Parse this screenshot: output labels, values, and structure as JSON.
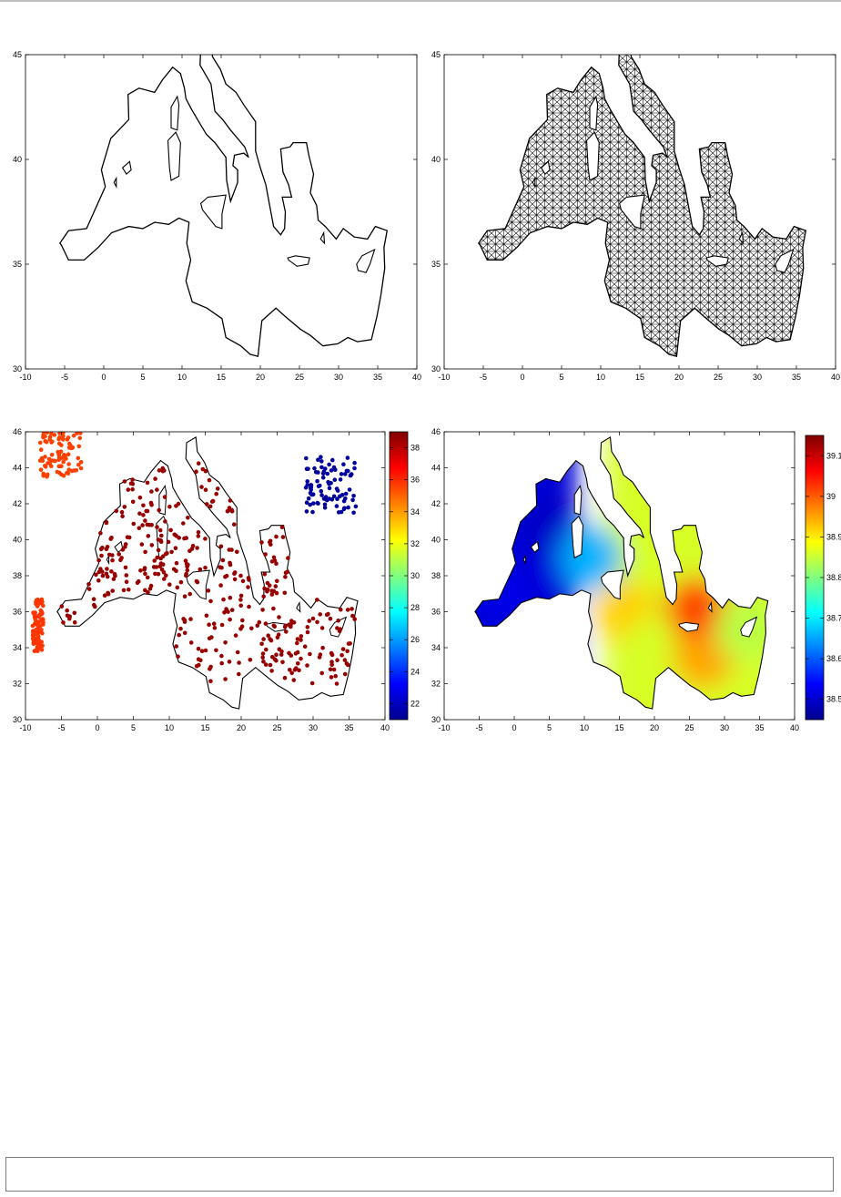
{
  "chart_data": [
    {
      "type": "line",
      "panel": "coastline",
      "xlim": [
        -10,
        40
      ],
      "ylim": [
        30,
        45
      ],
      "xticks": [
        -10,
        -5,
        0,
        5,
        10,
        15,
        20,
        25,
        30,
        35,
        40
      ],
      "yticks": [
        30,
        35,
        40,
        45
      ],
      "grid": false
    },
    {
      "type": "line",
      "panel": "mesh",
      "xlim": [
        -10,
        40
      ],
      "ylim": [
        30,
        45
      ],
      "xticks": [
        -10,
        -5,
        0,
        5,
        10,
        15,
        20,
        25,
        30,
        35,
        40
      ],
      "yticks": [
        30,
        35,
        40,
        45
      ],
      "grid": false
    },
    {
      "type": "scatter",
      "panel": "observations",
      "xlim": [
        -10,
        40
      ],
      "ylim": [
        30,
        46
      ],
      "xticks": [
        -10,
        -5,
        0,
        5,
        10,
        15,
        20,
        25,
        30,
        35,
        40
      ],
      "yticks": [
        30,
        32,
        34,
        36,
        38,
        40,
        42,
        44,
        46
      ],
      "colorbar": {
        "range": [
          21,
          39
        ],
        "ticks": [
          22,
          24,
          26,
          28,
          30,
          32,
          34,
          36,
          38
        ],
        "placement": "right"
      },
      "clusters": [
        {
          "x": [
            -8,
            -2
          ],
          "y": [
            43.5,
            46
          ],
          "value": 35.6
        },
        {
          "x": [
            -9,
            -7.5
          ],
          "y": [
            33.8,
            36.7
          ],
          "value": 35.8
        },
        {
          "x": [
            29,
            36
          ],
          "y": [
            41.5,
            44.6
          ],
          "value": 21.5
        },
        {
          "x": [
            -6,
            36
          ],
          "y": [
            32,
            44.5
          ],
          "value": 38.6
        }
      ],
      "grid": false
    },
    {
      "type": "heatmap",
      "panel": "analysis",
      "xlim": [
        -10,
        40
      ],
      "ylim": [
        30,
        46
      ],
      "xticks": [
        -10,
        -5,
        0,
        5,
        10,
        15,
        20,
        25,
        30,
        35,
        40
      ],
      "yticks": [
        30,
        32,
        34,
        36,
        38,
        40,
        42,
        44,
        46
      ],
      "colorbar": {
        "range": [
          38.45,
          39.15
        ],
        "tick_labels": [
          "38.5",
          "38.6",
          "38.7",
          "38.8",
          "38.9",
          "39",
          "39.1"
        ],
        "tick_values": [
          38.5,
          38.6,
          38.7,
          38.8,
          38.9,
          39.0,
          39.1
        ],
        "placement": "right"
      },
      "field_samples": [
        {
          "x": -2,
          "y": 37,
          "value": 38.52
        },
        {
          "x": 5,
          "y": 41,
          "value": 38.5
        },
        {
          "x": 11,
          "y": 39,
          "value": 38.66
        },
        {
          "x": 16,
          "y": 36,
          "value": 38.92
        },
        {
          "x": 20,
          "y": 34,
          "value": 38.86
        },
        {
          "x": 27,
          "y": 33.5,
          "value": 38.95
        },
        {
          "x": 26,
          "y": 36.2,
          "value": 39.02
        },
        {
          "x": 33,
          "y": 35,
          "value": 38.84
        }
      ],
      "grid": false
    }
  ]
}
